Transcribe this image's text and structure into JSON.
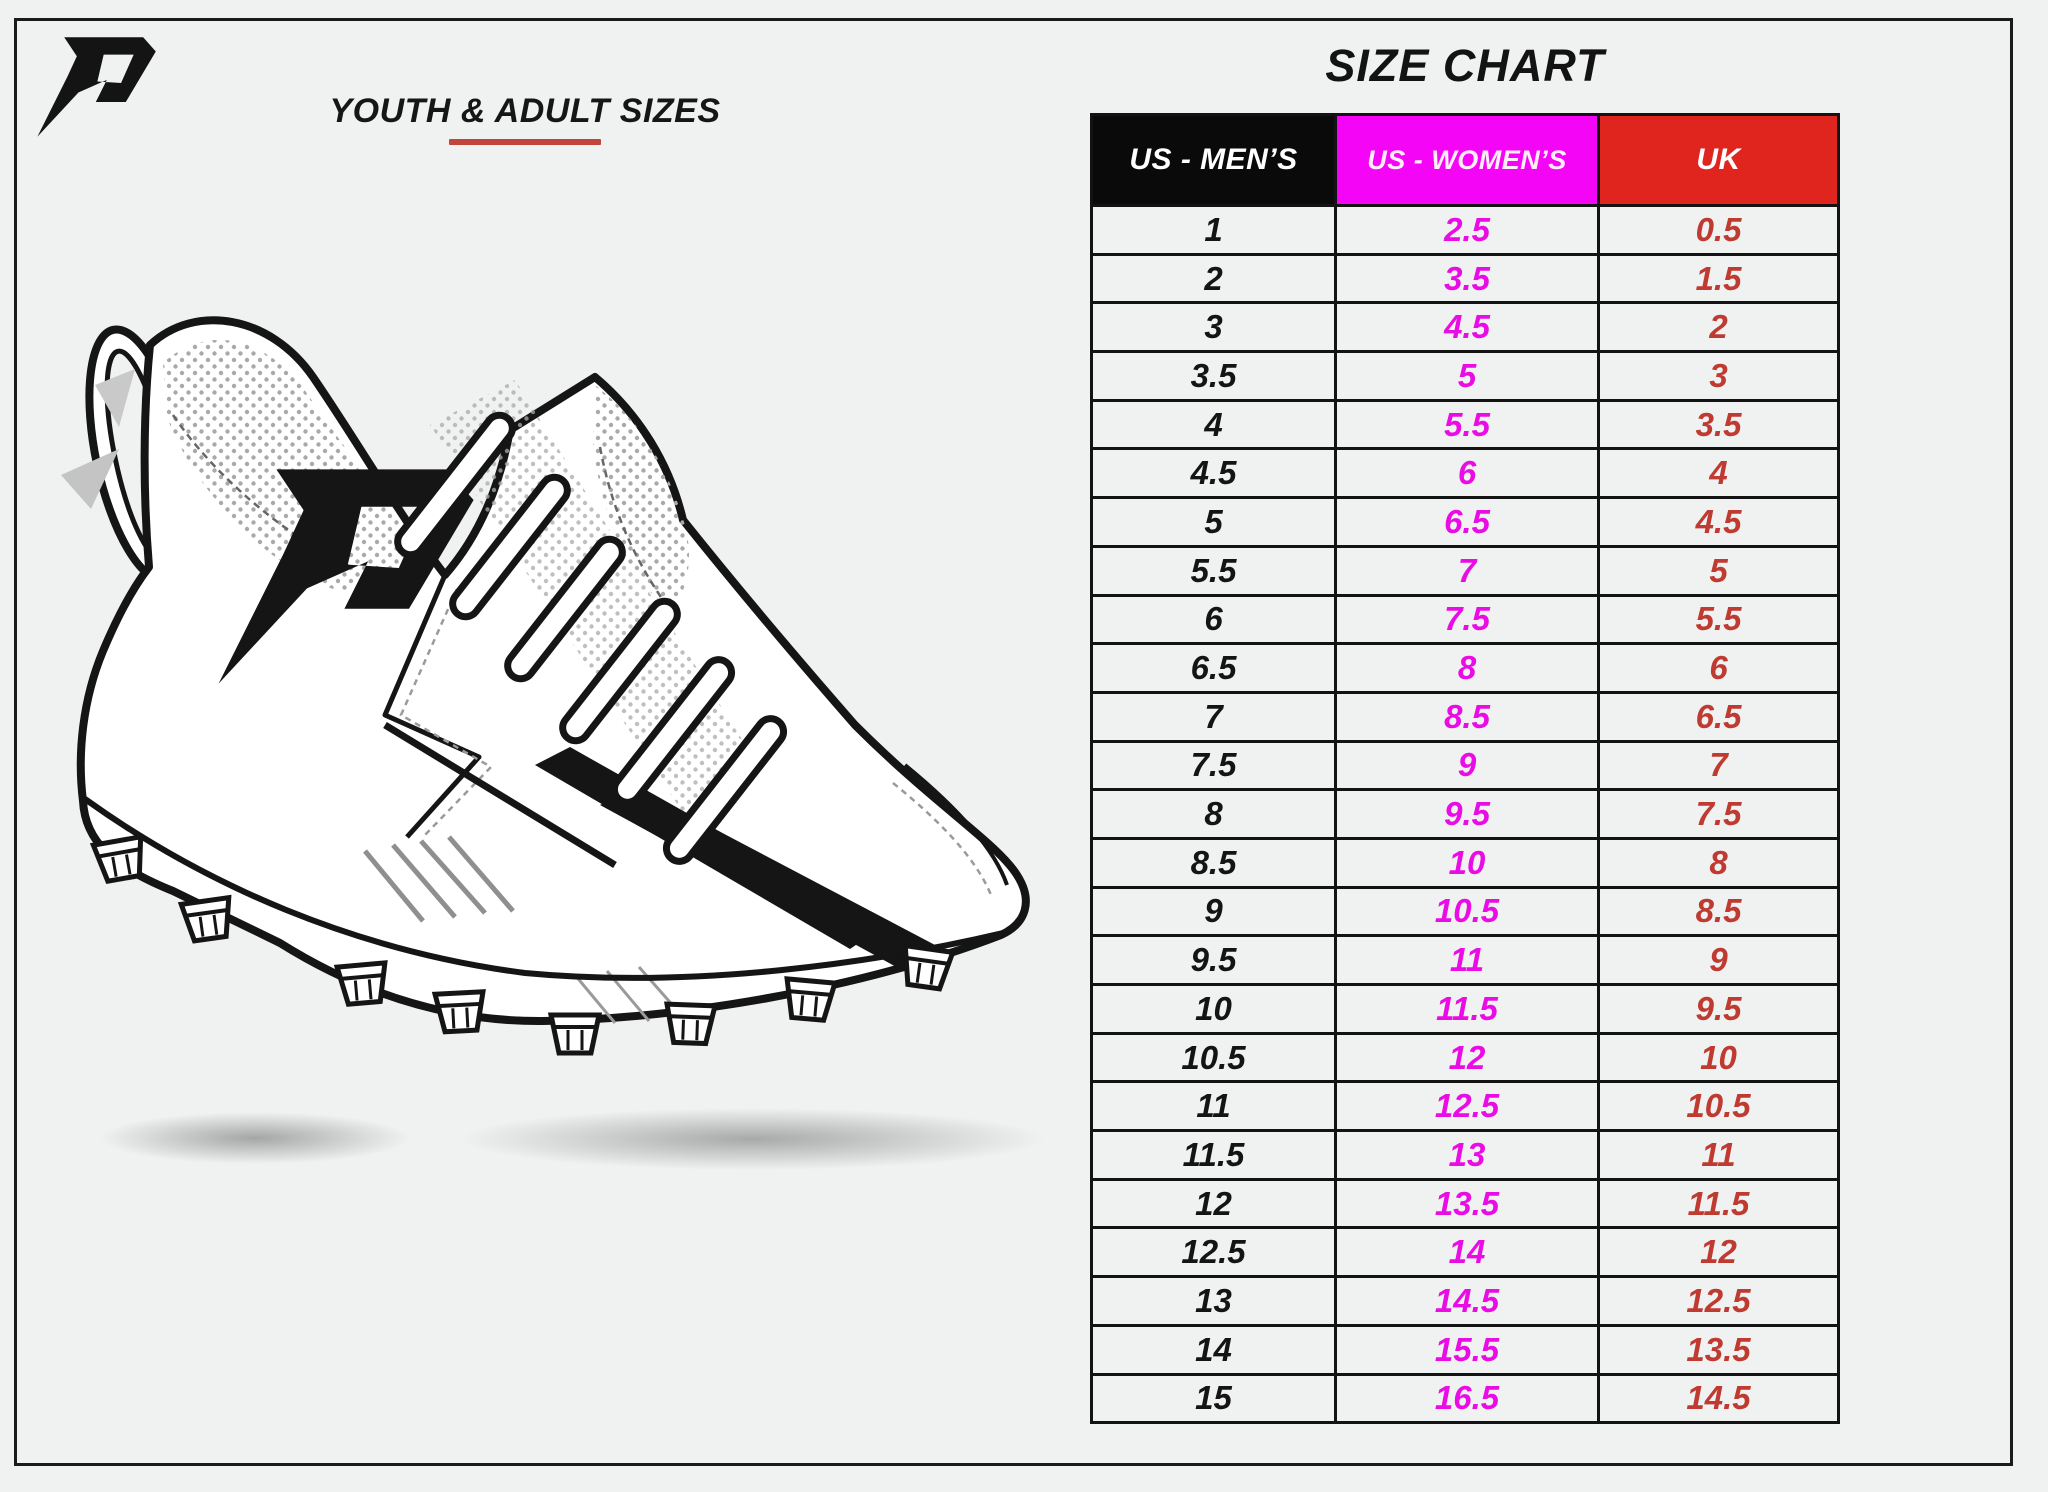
{
  "header": {
    "subtitle": "YOUTH & ADULT SIZES",
    "logo": "phenom-p-logo"
  },
  "illustration": {
    "name": "football-cleat-line-drawing"
  },
  "chart_data": {
    "type": "table",
    "title": "SIZE CHART",
    "columns": [
      {
        "label": "US - MEN’S",
        "bg": "#0a0a0a",
        "text_color": "#ffffff"
      },
      {
        "label": "US - WOMEN’S",
        "bg": "#f505f5",
        "text_color": "#ffeef8"
      },
      {
        "label": "UK",
        "bg": "#e0251f",
        "text_color": "#ffffff"
      }
    ],
    "value_colors": [
      "#141414",
      "#e90ce4",
      "#bf3a31"
    ],
    "rows": [
      [
        "1",
        "2.5",
        "0.5"
      ],
      [
        "2",
        "3.5",
        "1.5"
      ],
      [
        "3",
        "4.5",
        "2"
      ],
      [
        "3.5",
        "5",
        "3"
      ],
      [
        "4",
        "5.5",
        "3.5"
      ],
      [
        "4.5",
        "6",
        "4"
      ],
      [
        "5",
        "6.5",
        "4.5"
      ],
      [
        "5.5",
        "7",
        "5"
      ],
      [
        "6",
        "7.5",
        "5.5"
      ],
      [
        "6.5",
        "8",
        "6"
      ],
      [
        "7",
        "8.5",
        "6.5"
      ],
      [
        "7.5",
        "9",
        "7"
      ],
      [
        "8",
        "9.5",
        "7.5"
      ],
      [
        "8.5",
        "10",
        "8"
      ],
      [
        "9",
        "10.5",
        "8.5"
      ],
      [
        "9.5",
        "11",
        "9"
      ],
      [
        "10",
        "11.5",
        "9.5"
      ],
      [
        "10.5",
        "12",
        "10"
      ],
      [
        "11",
        "12.5",
        "10.5"
      ],
      [
        "11.5",
        "13",
        "11"
      ],
      [
        "12",
        "13.5",
        "11.5"
      ],
      [
        "12.5",
        "14",
        "12"
      ],
      [
        "13",
        "14.5",
        "12.5"
      ],
      [
        "14",
        "15.5",
        "13.5"
      ],
      [
        "15",
        "16.5",
        "14.5"
      ]
    ],
    "accent_colors": {
      "underline_red": "#c2453c",
      "frame_border": "#1b1b1b",
      "background": "#f0f1f1"
    }
  }
}
